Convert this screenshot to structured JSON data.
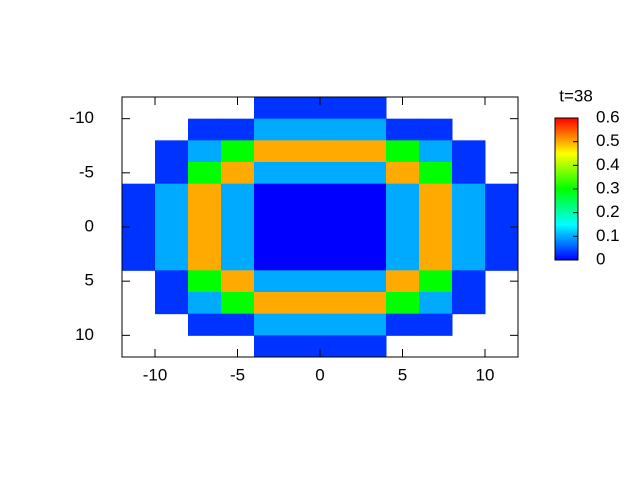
{
  "chart_data": {
    "type": "heatmap",
    "colorbar_title": "t=38",
    "x": [
      -11,
      -9,
      -7,
      -5,
      -3,
      -1,
      1,
      3,
      5,
      7,
      9,
      11
    ],
    "y": [
      -11,
      -9,
      -7,
      -5,
      -3,
      -1,
      1,
      3,
      5,
      7,
      9,
      11
    ],
    "z": [
      [
        null,
        null,
        null,
        null,
        0.03,
        0.03,
        0.03,
        0.03,
        null,
        null,
        null,
        null
      ],
      [
        null,
        null,
        0.03,
        0.03,
        0.1,
        0.1,
        0.1,
        0.1,
        0.03,
        0.03,
        null,
        null
      ],
      [
        null,
        0.03,
        0.1,
        0.3,
        0.5,
        0.5,
        0.5,
        0.5,
        0.3,
        0.1,
        0.03,
        null
      ],
      [
        null,
        0.03,
        0.3,
        0.5,
        0.1,
        0.1,
        0.1,
        0.1,
        0.5,
        0.3,
        0.03,
        null
      ],
      [
        0.03,
        0.1,
        0.5,
        0.1,
        0,
        0,
        0,
        0,
        0.1,
        0.5,
        0.1,
        0.03
      ],
      [
        0.03,
        0.1,
        0.5,
        0.1,
        0,
        0,
        0,
        0,
        0.1,
        0.5,
        0.1,
        0.03
      ],
      [
        0.03,
        0.1,
        0.5,
        0.1,
        0,
        0,
        0,
        0,
        0.1,
        0.5,
        0.1,
        0.03
      ],
      [
        0.03,
        0.1,
        0.5,
        0.1,
        0,
        0,
        0,
        0,
        0.1,
        0.5,
        0.1,
        0.03
      ],
      [
        null,
        0.03,
        0.3,
        0.5,
        0.1,
        0.1,
        0.1,
        0.1,
        0.5,
        0.3,
        0.03,
        null
      ],
      [
        null,
        0.03,
        0.1,
        0.3,
        0.5,
        0.5,
        0.5,
        0.5,
        0.3,
        0.1,
        0.03,
        null
      ],
      [
        null,
        null,
        0.03,
        0.03,
        0.1,
        0.1,
        0.1,
        0.1,
        0.03,
        0.03,
        null,
        null
      ],
      [
        null,
        null,
        null,
        null,
        0.03,
        0.03,
        0.03,
        0.03,
        null,
        null,
        null,
        null
      ]
    ],
    "xlim": [
      -12,
      12
    ],
    "xticks": [
      -10,
      -5,
      0,
      5,
      10
    ],
    "ylim": [
      -12,
      12
    ],
    "yticks": [
      -10,
      -5,
      0,
      5,
      10
    ],
    "y_reversed": true,
    "clim": [
      0,
      0.6
    ],
    "cticks": [
      0,
      0.1,
      0.2,
      0.3,
      0.4,
      0.5,
      0.6
    ],
    "colormap": [
      "#0000ff",
      "#00ffff",
      "#00ff00",
      "#ffff00",
      "#ff0000"
    ]
  }
}
